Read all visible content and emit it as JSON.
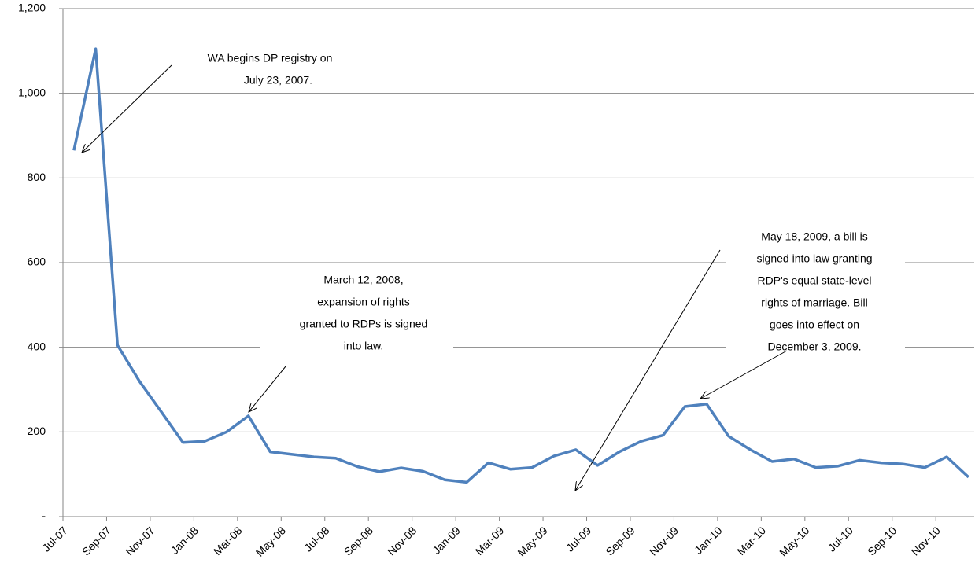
{
  "chart_data": {
    "type": "line",
    "categories": [
      "Jul-07",
      null,
      "Sep-07",
      null,
      "Nov-07",
      null,
      "Jan-08",
      null,
      "Mar-08",
      null,
      "May-08",
      null,
      "Jul-08",
      null,
      "Sep-08",
      null,
      "Nov-08",
      null,
      "Jan-09",
      null,
      "Mar-09",
      null,
      "May-09",
      null,
      "Jul-09",
      null,
      "Sep-09",
      null,
      "Nov-09",
      null,
      "Jan-10",
      null,
      "Mar-10",
      null,
      "May-10",
      null,
      "Jul-10",
      null,
      "Sep-10",
      null,
      "Nov-10",
      null
    ],
    "values": [
      865,
      1105,
      405,
      320,
      248,
      175,
      178,
      200,
      238,
      153,
      147,
      141,
      138,
      118,
      106,
      115,
      107,
      87,
      81,
      127,
      112,
      116,
      143,
      158,
      121,
      153,
      178,
      192,
      260,
      266,
      190,
      158,
      130,
      136,
      116,
      119,
      133,
      127,
      124,
      116,
      141,
      93
    ],
    "color": "#4f81bd",
    "ylim": [
      0,
      1200
    ],
    "yticks": [
      {
        "value": 0,
        "label": "-"
      },
      200,
      400,
      600,
      800,
      {
        "value": 1000,
        "label": "1,000"
      },
      {
        "value": 1200,
        "label": "1,200"
      }
    ],
    "grid": true,
    "annotations": [
      {
        "lines": [
          "WA begins DP registry on",
          "July 23, 2007."
        ]
      },
      {
        "lines": [
          "March 12, 2008,",
          "expansion of rights",
          "granted to RDPs is signed",
          "into law."
        ]
      },
      {
        "lines": [
          "May 18, 2009, a bill is",
          "signed into law granting",
          "RDP's equal state-level",
          "rights of marriage.  Bill",
          "goes into effect on",
          "December 3, 2009."
        ]
      }
    ]
  }
}
